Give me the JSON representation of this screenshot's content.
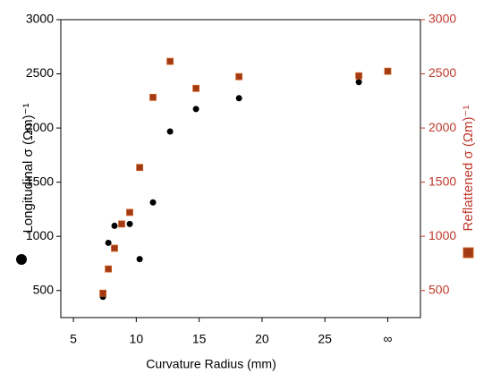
{
  "chart_data": {
    "type": "scatter",
    "xlabel": "Curvature Radius (mm)",
    "xlim": [
      4,
      32.6
    ],
    "xticks": [
      5,
      10,
      15,
      20,
      25,
      {
        "value": 30,
        "label": "∞"
      }
    ],
    "ylim": [
      250,
      3000
    ],
    "yticks": [
      500,
      1000,
      1500,
      2000,
      2500,
      3000
    ],
    "y2lim": [
      250,
      3000
    ],
    "y2ticks": [
      500,
      1000,
      1500,
      2000,
      2500,
      3000
    ],
    "series": [
      {
        "name": "Longitudinal σ (Ωm)⁻¹",
        "color": "#000000",
        "marker": "circle",
        "x": [
          7.35,
          7.78,
          8.27,
          9.48,
          10.27,
          11.33,
          12.69,
          14.75,
          18.17,
          27.7,
          30
        ],
        "values": [
          442,
          940,
          1097,
          1114,
          790,
          1313,
          1968,
          2175,
          2275,
          2424,
          2524
        ]
      },
      {
        "name": "Reflattened σ (Ωm)⁻¹",
        "color": "#a23a16",
        "marker": "square",
        "axis": "y2",
        "x": [
          7.35,
          7.78,
          8.27,
          8.84,
          9.48,
          10.27,
          11.33,
          12.69,
          14.75,
          18.17,
          27.7,
          30
        ],
        "values": [
          475,
          699,
          890,
          1114,
          1221,
          1636,
          2283,
          2615,
          2366,
          2474,
          2482,
          2524
        ]
      }
    ]
  }
}
